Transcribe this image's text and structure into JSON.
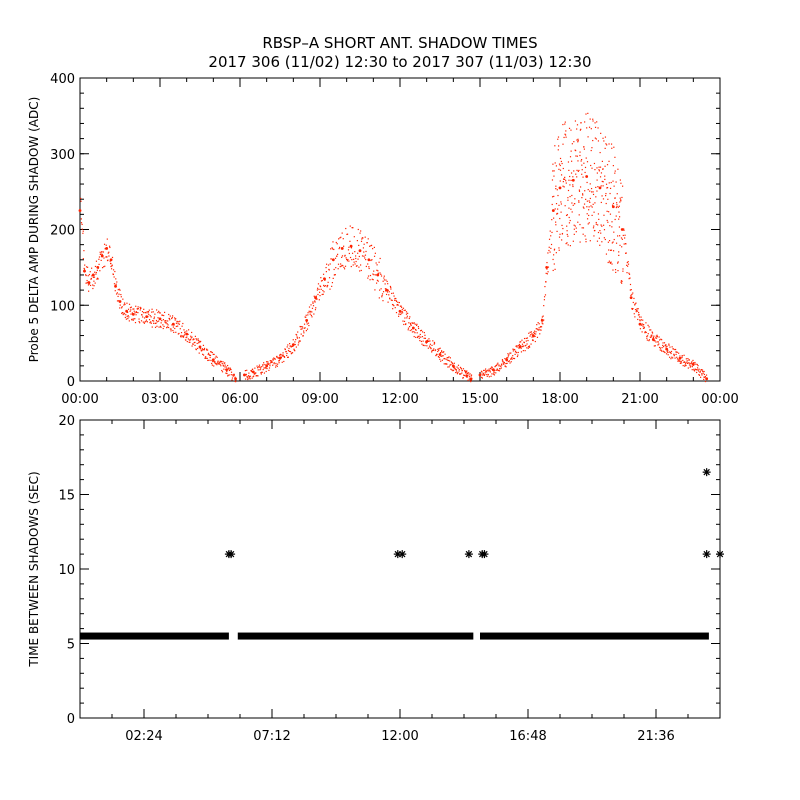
{
  "title": "RBSP–A SHORT ANT. SHADOW TIMES",
  "subtitle": "2017 306 (11/02) 12:30 to 2017 307 (11/03) 12:30",
  "chart_data": [
    {
      "type": "scatter",
      "title": "",
      "xlabel": "",
      "ylabel": "Probe 5 DELTA AMP DURING SHADOW (ADC)",
      "xlim": [
        "00:00",
        "24:00"
      ],
      "ylim": [
        0,
        400
      ],
      "x_tick_labels": [
        "00:00",
        "03:00",
        "06:00",
        "09:00",
        "12:00",
        "15:00",
        "18:00",
        "21:00",
        "00:00"
      ],
      "y_tick_labels": [
        "0",
        "100",
        "200",
        "300",
        "400"
      ],
      "marker_color": "#ff2200",
      "series": [
        {
          "points": [
            [
              "00:00",
              225
            ],
            [
              "00:10",
              145
            ],
            [
              "00:20",
              130
            ],
            [
              "00:30",
              140
            ],
            [
              "00:40",
              150
            ],
            [
              "00:50",
              165
            ],
            [
              "01:00",
              175
            ],
            [
              "01:10",
              160
            ],
            [
              "01:20",
              125
            ],
            [
              "01:30",
              105
            ],
            [
              "01:45",
              92
            ],
            [
              "02:00",
              88
            ],
            [
              "02:30",
              85
            ],
            [
              "03:00",
              82
            ],
            [
              "03:30",
              75
            ],
            [
              "04:00",
              62
            ],
            [
              "04:30",
              45
            ],
            [
              "05:00",
              28
            ],
            [
              "05:30",
              15
            ],
            [
              "05:50",
              3
            ],
            [
              "06:10",
              8
            ],
            [
              "06:30",
              12
            ],
            [
              "07:00",
              20
            ],
            [
              "07:30",
              30
            ],
            [
              "08:00",
              48
            ],
            [
              "08:30",
              80
            ],
            [
              "08:50",
              110
            ],
            [
              "09:10",
              135
            ],
            [
              "09:30",
              160
            ],
            [
              "09:50",
              175
            ],
            [
              "10:10",
              178
            ],
            [
              "10:30",
              172
            ],
            [
              "10:50",
              160
            ],
            [
              "11:10",
              140
            ],
            [
              "11:30",
              120
            ],
            [
              "12:00",
              92
            ],
            [
              "12:30",
              70
            ],
            [
              "13:00",
              52
            ],
            [
              "13:30",
              35
            ],
            [
              "14:00",
              20
            ],
            [
              "14:30",
              7
            ],
            [
              "14:40",
              3
            ],
            [
              "15:00",
              8
            ],
            [
              "15:30",
              15
            ],
            [
              "16:00",
              28
            ],
            [
              "16:30",
              45
            ],
            [
              "17:00",
              60
            ],
            [
              "17:20",
              80
            ],
            [
              "17:30",
              150
            ],
            [
              "17:45",
              225
            ],
            [
              "18:00",
              255
            ],
            [
              "18:30",
              265
            ],
            [
              "19:00",
              270
            ],
            [
              "19:30",
              255
            ],
            [
              "20:00",
              230
            ],
            [
              "20:20",
              200
            ],
            [
              "20:40",
              110
            ],
            [
              "21:00",
              75
            ],
            [
              "21:30",
              55
            ],
            [
              "22:00",
              42
            ],
            [
              "22:30",
              30
            ],
            [
              "23:00",
              22
            ],
            [
              "23:30",
              3
            ]
          ]
        }
      ]
    },
    {
      "type": "scatter",
      "title": "",
      "xlabel": "",
      "ylabel": "TIME BETWEEN SHADOWS (SEC)",
      "xlim": [
        "00:00",
        "24:00"
      ],
      "ylim": [
        0,
        20
      ],
      "x_tick_labels": [
        "02:24",
        "07:12",
        "12:00",
        "16:48",
        "21:36"
      ],
      "y_tick_labels": [
        "0",
        "5",
        "10",
        "15",
        "20"
      ],
      "marker": "asterisk",
      "marker_color": "#000000",
      "baseline": {
        "value": 5.5,
        "segments": [
          [
            "00:00",
            "05:35"
          ],
          [
            "05:55",
            "14:45"
          ],
          [
            "15:00",
            "23:35"
          ]
        ]
      },
      "outliers": [
        [
          "05:35",
          11.0
        ],
        [
          "05:40",
          11.0
        ],
        [
          "11:55",
          11.0
        ],
        [
          "12:05",
          11.0
        ],
        [
          "14:35",
          11.0
        ],
        [
          "15:05",
          11.0
        ],
        [
          "15:10",
          11.0
        ],
        [
          "23:30",
          16.5
        ],
        [
          "23:30",
          11.0
        ],
        [
          "24:00",
          11.0
        ]
      ]
    }
  ]
}
